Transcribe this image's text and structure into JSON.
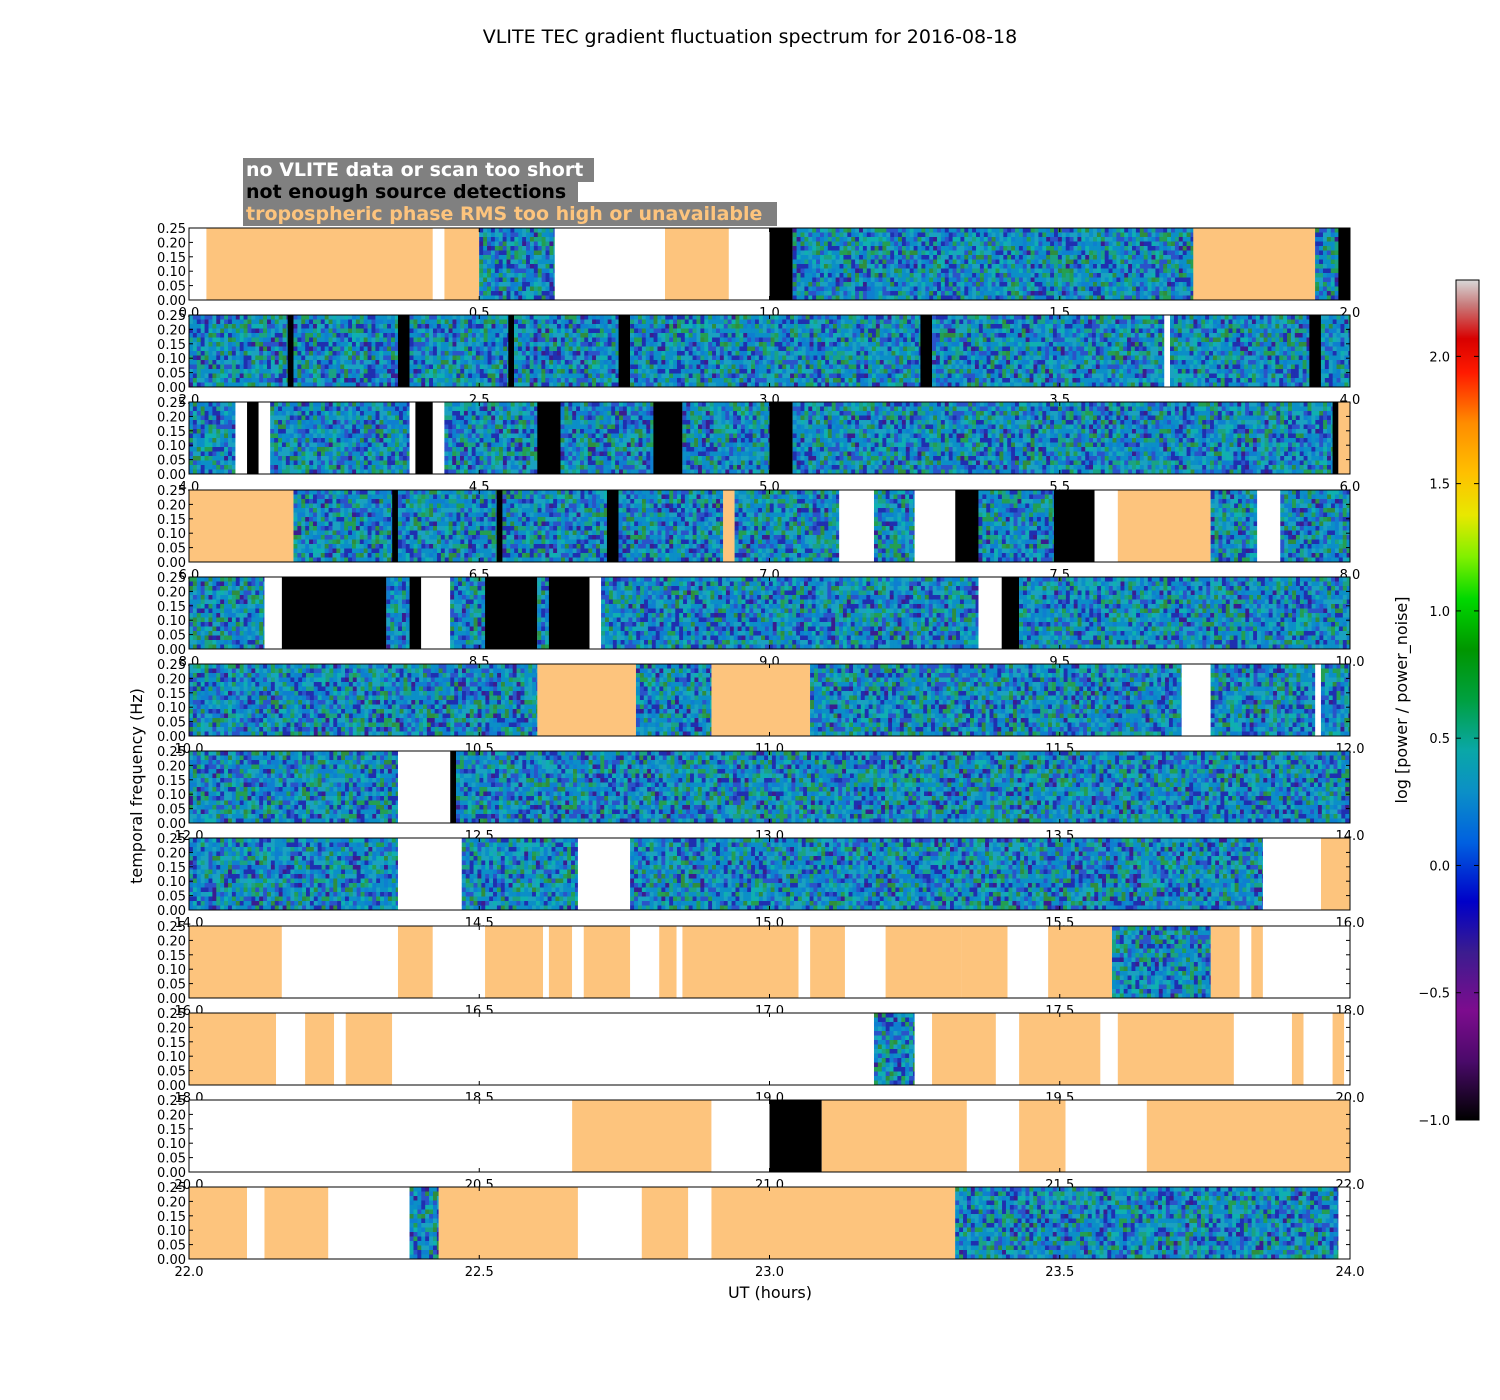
{
  "chart_data": {
    "type": "heatmap",
    "title": "VLITE TEC gradient fluctuation spectrum for 2016-08-18",
    "xlabel": "UT (hours)",
    "ylabel": "temporal frequency (Hz)",
    "ylim": [
      0.0,
      0.25
    ],
    "yticks": [
      "0.00",
      "0.05",
      "0.10",
      "0.15",
      "0.20",
      "0.25"
    ],
    "colorbar": {
      "label": "log [power / power_noise]",
      "range": [
        -1.0,
        2.3
      ],
      "ticks": [
        "−1.0",
        "−0.5",
        "0.0",
        "0.5",
        "1.0",
        "1.5",
        "2.0"
      ]
    },
    "legend": [
      {
        "label": "no VLITE data or scan too short",
        "color": "#ffffff",
        "box": "#808080"
      },
      {
        "label": "not enough source detections",
        "color": "#000000",
        "box": "#808080"
      },
      {
        "label": "tropospheric phase RMS too high or unavailable",
        "color": "#fdc47d",
        "box": "#808080"
      }
    ],
    "colors": {
      "flagged_troposphere": "#fdc47d",
      "no_detections": "#000000",
      "no_data": "#ffffff"
    },
    "panels": [
      {
        "xlim": [
          0.0,
          2.0
        ],
        "xticks": [
          "0.0",
          "0.5",
          "1.0",
          "1.5",
          "2.0"
        ],
        "segments": [
          [
            "W",
            0,
            0.03
          ],
          [
            "O",
            0.03,
            0.42
          ],
          [
            "W",
            0.42,
            0.44
          ],
          [
            "O",
            0.44,
            0.5
          ],
          [
            "S",
            0.5,
            0.63
          ],
          [
            "W",
            0.63,
            0.82
          ],
          [
            "O",
            0.82,
            0.93
          ],
          [
            "W",
            0.93,
            1.0
          ],
          [
            "B",
            1.0,
            1.04
          ],
          [
            "S",
            1.04,
            1.73
          ],
          [
            "O",
            1.73,
            1.94
          ],
          [
            "S",
            1.94,
            1.98
          ],
          [
            "B",
            1.98,
            2.0
          ]
        ]
      },
      {
        "xlim": [
          2.0,
          4.0
        ],
        "xticks": [
          "2.0",
          "2.5",
          "3.0",
          "3.5",
          "4.0"
        ],
        "segments": [
          [
            "S",
            2.0,
            2.17
          ],
          [
            "B",
            2.17,
            2.18
          ],
          [
            "S",
            2.18,
            2.36
          ],
          [
            "B",
            2.36,
            2.38
          ],
          [
            "S",
            2.38,
            2.55
          ],
          [
            "B",
            2.55,
            2.56
          ],
          [
            "S",
            2.56,
            2.74
          ],
          [
            "B",
            2.74,
            2.76
          ],
          [
            "S",
            2.76,
            3.26
          ],
          [
            "B",
            3.26,
            3.28
          ],
          [
            "S",
            3.28,
            3.68
          ],
          [
            "W",
            3.68,
            3.69
          ],
          [
            "S",
            3.69,
            3.93
          ],
          [
            "B",
            3.93,
            3.95
          ],
          [
            "S",
            3.95,
            4.0
          ]
        ]
      },
      {
        "xlim": [
          4.0,
          6.0
        ],
        "xticks": [
          "4.0",
          "4.5",
          "5.0",
          "5.5",
          "6.0"
        ],
        "segments": [
          [
            "S",
            4.0,
            4.08
          ],
          [
            "W",
            4.08,
            4.1
          ],
          [
            "B",
            4.1,
            4.12
          ],
          [
            "W",
            4.12,
            4.14
          ],
          [
            "S",
            4.14,
            4.38
          ],
          [
            "W",
            4.38,
            4.39
          ],
          [
            "B",
            4.39,
            4.42
          ],
          [
            "W",
            4.42,
            4.44
          ],
          [
            "S",
            4.44,
            4.6
          ],
          [
            "B",
            4.6,
            4.64
          ],
          [
            "S",
            4.64,
            4.8
          ],
          [
            "B",
            4.8,
            4.85
          ],
          [
            "S",
            4.85,
            5.0
          ],
          [
            "B",
            5.0,
            5.04
          ],
          [
            "S",
            5.04,
            5.97
          ],
          [
            "B",
            5.97,
            5.98
          ],
          [
            "O",
            5.98,
            6.0
          ]
        ]
      },
      {
        "xlim": [
          6.0,
          8.0
        ],
        "xticks": [
          "6.0",
          "6.5",
          "7.0",
          "7.5",
          "8.0"
        ],
        "segments": [
          [
            "O",
            6.0,
            6.18
          ],
          [
            "S",
            6.18,
            6.35
          ],
          [
            "B",
            6.35,
            6.36
          ],
          [
            "S",
            6.36,
            6.53
          ],
          [
            "B",
            6.53,
            6.54
          ],
          [
            "S",
            6.54,
            6.72
          ],
          [
            "B",
            6.72,
            6.74
          ],
          [
            "S",
            6.74,
            6.92
          ],
          [
            "O",
            6.92,
            6.94
          ],
          [
            "S",
            6.94,
            7.12
          ],
          [
            "W",
            7.12,
            7.18
          ],
          [
            "S",
            7.18,
            7.25
          ],
          [
            "W",
            7.25,
            7.32
          ],
          [
            "B",
            7.32,
            7.36
          ],
          [
            "S",
            7.36,
            7.49
          ],
          [
            "B",
            7.49,
            7.56
          ],
          [
            "W",
            7.56,
            7.6
          ],
          [
            "O",
            7.6,
            7.76
          ],
          [
            "S",
            7.76,
            7.84
          ],
          [
            "W",
            7.84,
            7.88
          ],
          [
            "S",
            7.88,
            8.0
          ]
        ]
      },
      {
        "xlim": [
          8.0,
          10.0
        ],
        "xticks": [
          "8.0",
          "8.5",
          "9.0",
          "9.5",
          "10.0"
        ],
        "segments": [
          [
            "S",
            8.0,
            8.13
          ],
          [
            "W",
            8.13,
            8.16
          ],
          [
            "B",
            8.16,
            8.34
          ],
          [
            "S",
            8.34,
            8.38
          ],
          [
            "B",
            8.38,
            8.4
          ],
          [
            "W",
            8.4,
            8.45
          ],
          [
            "S",
            8.45,
            8.51
          ],
          [
            "B",
            8.51,
            8.6
          ],
          [
            "S",
            8.6,
            8.62
          ],
          [
            "B",
            8.62,
            8.69
          ],
          [
            "W",
            8.69,
            8.71
          ],
          [
            "S",
            8.71,
            9.36
          ],
          [
            "W",
            9.36,
            9.4
          ],
          [
            "B",
            9.4,
            9.43
          ],
          [
            "S",
            9.43,
            10.0
          ]
        ]
      },
      {
        "xlim": [
          10.0,
          12.0
        ],
        "xticks": [
          "10.0",
          "10.5",
          "11.0",
          "11.5",
          "12.0"
        ],
        "segments": [
          [
            "S",
            10.0,
            10.6
          ],
          [
            "O",
            10.6,
            10.77
          ],
          [
            "S",
            10.77,
            10.9
          ],
          [
            "O",
            10.9,
            11.07
          ],
          [
            "S",
            11.07,
            11.71
          ],
          [
            "W",
            11.71,
            11.76
          ],
          [
            "S",
            11.76,
            11.94
          ],
          [
            "W",
            11.94,
            11.95
          ],
          [
            "S",
            11.95,
            12.0
          ]
        ]
      },
      {
        "xlim": [
          12.0,
          14.0
        ],
        "xticks": [
          "12.0",
          "12.5",
          "13.0",
          "13.5",
          "14.0"
        ],
        "segments": [
          [
            "S",
            12.0,
            12.36
          ],
          [
            "W",
            12.36,
            12.45
          ],
          [
            "B",
            12.45,
            12.46
          ],
          [
            "S",
            12.46,
            14.0
          ]
        ]
      },
      {
        "xlim": [
          14.0,
          16.0
        ],
        "xticks": [
          "14.0",
          "14.5",
          "15.0",
          "15.5",
          "16.0"
        ],
        "segments": [
          [
            "S",
            14.0,
            14.36
          ],
          [
            "W",
            14.36,
            14.47
          ],
          [
            "S",
            14.47,
            14.67
          ],
          [
            "W",
            14.67,
            14.76
          ],
          [
            "S",
            14.76,
            15.85
          ],
          [
            "W",
            15.85,
            15.95
          ],
          [
            "O",
            15.95,
            16.0
          ]
        ]
      },
      {
        "xlim": [
          16.0,
          18.0
        ],
        "xticks": [
          "16.0",
          "16.5",
          "17.0",
          "17.5",
          "18.0"
        ],
        "segments": [
          [
            "O",
            16.0,
            16.16
          ],
          [
            "W",
            16.16,
            16.36
          ],
          [
            "O",
            16.36,
            16.42
          ],
          [
            "W",
            16.42,
            16.51
          ],
          [
            "O",
            16.51,
            16.61
          ],
          [
            "W",
            16.61,
            16.62
          ],
          [
            "O",
            16.62,
            16.66
          ],
          [
            "W",
            16.66,
            16.68
          ],
          [
            "O",
            16.68,
            16.76
          ],
          [
            "W",
            16.76,
            16.81
          ],
          [
            "O",
            16.81,
            16.84
          ],
          [
            "W",
            16.84,
            16.85
          ],
          [
            "O",
            16.85,
            17.05
          ],
          [
            "W",
            17.05,
            17.07
          ],
          [
            "O",
            17.07,
            17.13
          ],
          [
            "W",
            17.13,
            17.2
          ],
          [
            "O",
            17.2,
            17.33
          ],
          [
            "W",
            17.33,
            17.33
          ],
          [
            "O",
            17.33,
            17.41
          ],
          [
            "W",
            17.41,
            17.48
          ],
          [
            "O",
            17.48,
            17.59
          ],
          [
            "S",
            17.59,
            17.76
          ],
          [
            "O",
            17.76,
            17.81
          ],
          [
            "W",
            17.81,
            17.83
          ],
          [
            "O",
            17.83,
            17.85
          ],
          [
            "W",
            17.85,
            18.0
          ]
        ]
      },
      {
        "xlim": [
          18.0,
          20.0
        ],
        "xticks": [
          "18.0",
          "18.5",
          "19.0",
          "19.5",
          "20.0"
        ],
        "segments": [
          [
            "O",
            18.0,
            18.15
          ],
          [
            "W",
            18.15,
            18.2
          ],
          [
            "O",
            18.2,
            18.25
          ],
          [
            "W",
            18.25,
            18.27
          ],
          [
            "O",
            18.27,
            18.35
          ],
          [
            "W",
            18.35,
            19.18
          ],
          [
            "S",
            19.18,
            19.25
          ],
          [
            "W",
            19.25,
            19.28
          ],
          [
            "O",
            19.28,
            19.39
          ],
          [
            "W",
            19.39,
            19.43
          ],
          [
            "O",
            19.43,
            19.57
          ],
          [
            "W",
            19.57,
            19.6
          ],
          [
            "O",
            19.6,
            19.8
          ],
          [
            "W",
            19.8,
            19.9
          ],
          [
            "O",
            19.9,
            19.92
          ],
          [
            "W",
            19.92,
            19.97
          ],
          [
            "O",
            19.97,
            19.99
          ],
          [
            "W",
            19.99,
            20.0
          ]
        ]
      },
      {
        "xlim": [
          20.0,
          22.0
        ],
        "xticks": [
          "20.0",
          "20.5",
          "21.0",
          "21.5",
          "22.0"
        ],
        "segments": [
          [
            "W",
            20.0,
            20.66
          ],
          [
            "O",
            20.66,
            20.9
          ],
          [
            "W",
            20.9,
            21.0
          ],
          [
            "B",
            21.0,
            21.09
          ],
          [
            "O",
            21.09,
            21.34
          ],
          [
            "W",
            21.34,
            21.43
          ],
          [
            "O",
            21.43,
            21.51
          ],
          [
            "W",
            21.51,
            21.65
          ],
          [
            "O",
            21.65,
            22.0
          ]
        ]
      },
      {
        "xlim": [
          22.0,
          24.0
        ],
        "xticks": [
          "22.0",
          "22.5",
          "23.0",
          "23.5",
          "24.0"
        ],
        "segments": [
          [
            "O",
            22.0,
            22.1
          ],
          [
            "W",
            22.1,
            22.13
          ],
          [
            "O",
            22.13,
            22.24
          ],
          [
            "W",
            22.24,
            22.38
          ],
          [
            "S",
            22.38,
            22.43
          ],
          [
            "O",
            22.43,
            22.67
          ],
          [
            "W",
            22.67,
            22.78
          ],
          [
            "O",
            22.78,
            22.86
          ],
          [
            "W",
            22.86,
            22.9
          ],
          [
            "O",
            22.9,
            23.32
          ],
          [
            "S",
            23.32,
            23.98
          ],
          [
            "W",
            23.98,
            24.0
          ]
        ]
      }
    ]
  }
}
